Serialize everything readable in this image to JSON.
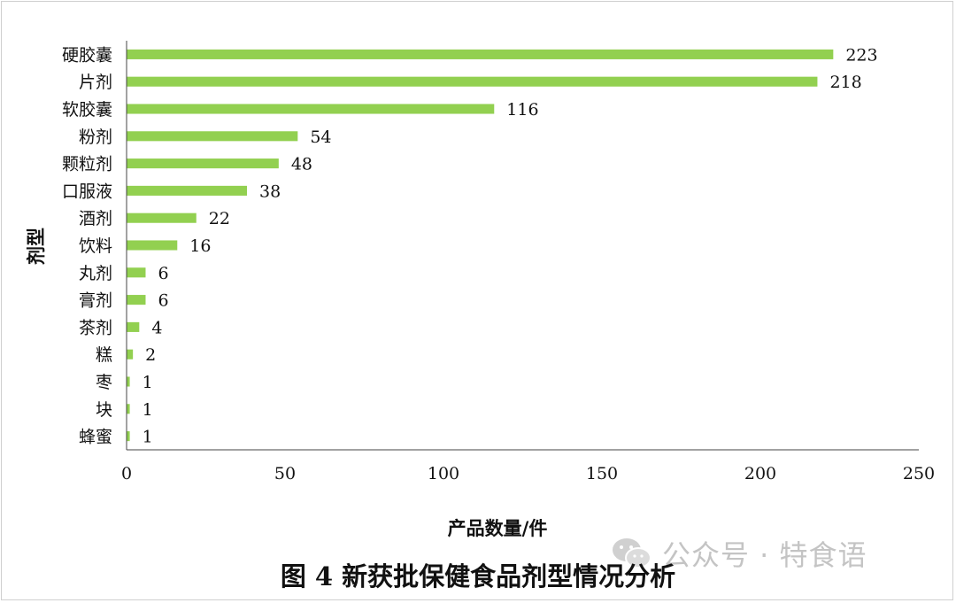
{
  "chart_data": {
    "type": "bar",
    "orientation": "horizontal",
    "categories": [
      "硬胶囊",
      "片剂",
      "软胶囊",
      "粉剂",
      "颗粒剂",
      "口服液",
      "酒剂",
      "饮料",
      "丸剂",
      "膏剂",
      "茶剂",
      "糕",
      "枣",
      "块",
      "蜂蜜"
    ],
    "values": [
      223,
      218,
      116,
      54,
      48,
      38,
      22,
      16,
      6,
      6,
      4,
      2,
      1,
      1,
      1
    ],
    "xlabel": "产品数量/件",
    "ylabel": "剂型",
    "xlim": [
      0,
      250
    ],
    "xticks": [
      "0",
      "50",
      "100",
      "150",
      "200",
      "250"
    ],
    "grid": false,
    "bar_color": "#92d050",
    "data_labels": true
  },
  "caption": "图 4 新获批保健食品剂型情况分析",
  "watermark": {
    "icon": "wechat-icon",
    "text": "公众号 · 特食语"
  }
}
